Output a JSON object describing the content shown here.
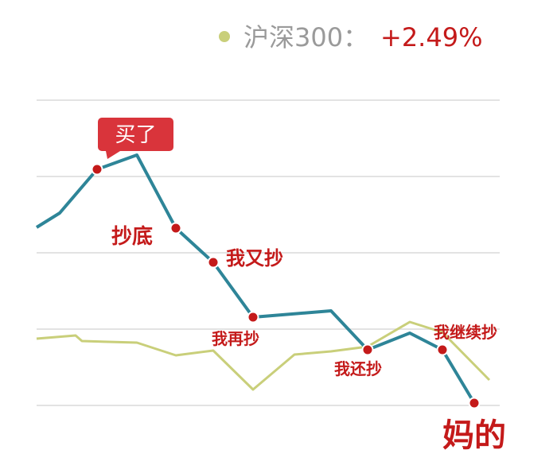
{
  "chart_data": {
    "type": "line",
    "title": "",
    "xlabel": "",
    "ylabel": "",
    "grid": true,
    "legend": {
      "position": "top-right",
      "label": "沪深300：",
      "value": "+2.49%",
      "marker_color": "#c9cf7a",
      "value_color": "#c41a1a"
    },
    "x": [
      0,
      1,
      2,
      3,
      4,
      5,
      6,
      7,
      8,
      9,
      10,
      11,
      12,
      13,
      14,
      15,
      16,
      17,
      18
    ],
    "series": [
      {
        "role": "stock",
        "color": "#2e8598",
        "values": [
          4.2,
          5.6,
          6.6,
          7.0,
          null,
          4.2,
          3.1,
          null,
          1.5,
          null,
          1.7,
          null,
          0.5,
          1.0,
          0.5,
          -0.5,
          null,
          null,
          null
        ]
      },
      {
        "role": "index",
        "name": "沪深300",
        "color": "#c9cf7a",
        "values": [
          1.9,
          2.1,
          1.7,
          1.6,
          1.0,
          1.2,
          -1.0,
          1.0,
          1.2,
          1.4,
          2.2,
          1.4,
          -0.5,
          null,
          null,
          null,
          null,
          null,
          null
        ]
      }
    ],
    "annotations": [
      {
        "label": "买了",
        "style": "callout",
        "point_color": "#c41a1a"
      },
      {
        "label": "抄底",
        "style": "label"
      },
      {
        "label": "我又抄",
        "style": "label"
      },
      {
        "label": "我再抄",
        "style": "label"
      },
      {
        "label": "我还抄",
        "style": "label"
      },
      {
        "label": "我继续抄",
        "style": "label"
      },
      {
        "label": "妈的",
        "style": "label-large"
      }
    ],
    "colors": {
      "annotation": "#c41a1a",
      "grid": "#e3e3e3",
      "callout_bg": "#d9343b"
    }
  }
}
